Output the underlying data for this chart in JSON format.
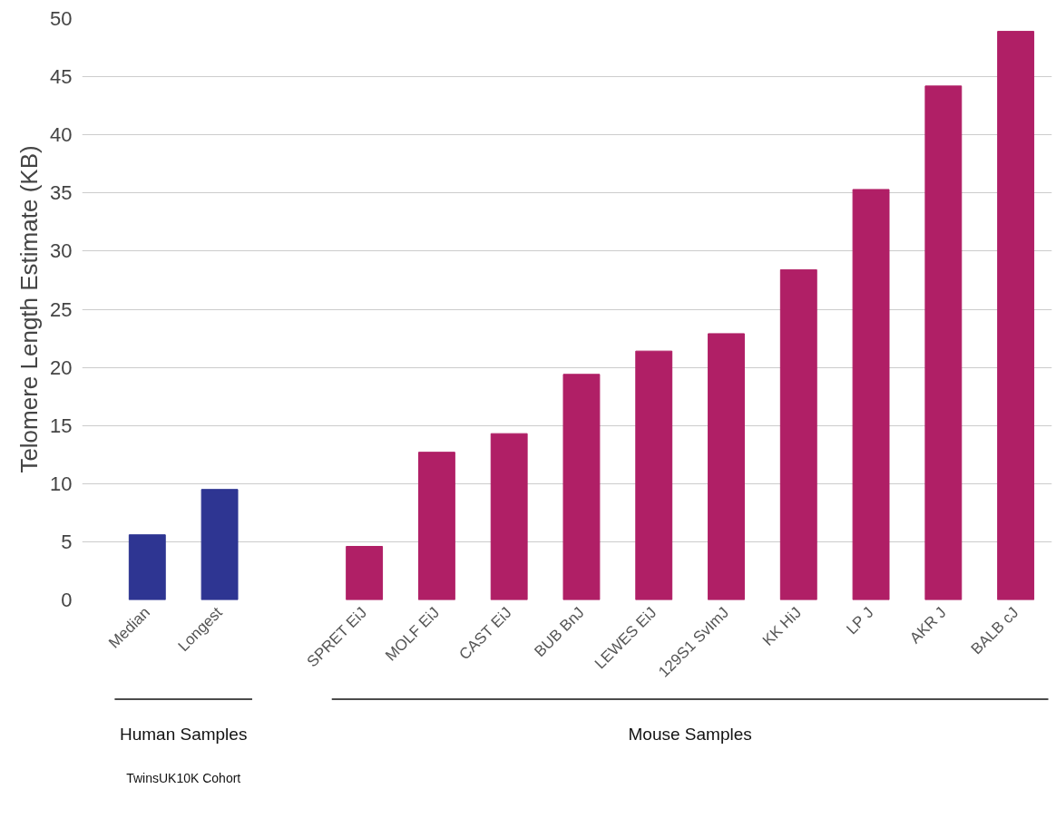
{
  "chart_data": {
    "type": "bar",
    "ylabel": "Telomere Length Estimate (KB)",
    "categories": [
      "Median",
      "Longest",
      null,
      "SPRET EiJ",
      "MOLF EiJ",
      "CAST EiJ",
      "BUB BnJ",
      "LEWES EiJ",
      "129S1 SvImJ",
      "KK HiJ",
      "LP J",
      "AKR J",
      "BALB cJ"
    ],
    "values": [
      5.6,
      9.5,
      null,
      4.6,
      12.7,
      14.3,
      19.4,
      21.4,
      22.9,
      28.4,
      35.3,
      44.2,
      48.9
    ],
    "colors": [
      "#2e3592",
      "#2e3592",
      null,
      "#b01f66",
      "#b01f66",
      "#b01f66",
      "#b01f66",
      "#b01f66",
      "#b01f66",
      "#b01f66",
      "#b01f66",
      "#b01f66",
      "#b01f66"
    ],
    "ylim": [
      0,
      50
    ],
    "yticks": [
      0,
      5,
      10,
      15,
      20,
      25,
      30,
      35,
      40,
      45,
      50
    ],
    "grid": "y",
    "annotations": [
      "Human Samples",
      "TwinsUK10K Cohort",
      "Mouse Samples"
    ]
  }
}
